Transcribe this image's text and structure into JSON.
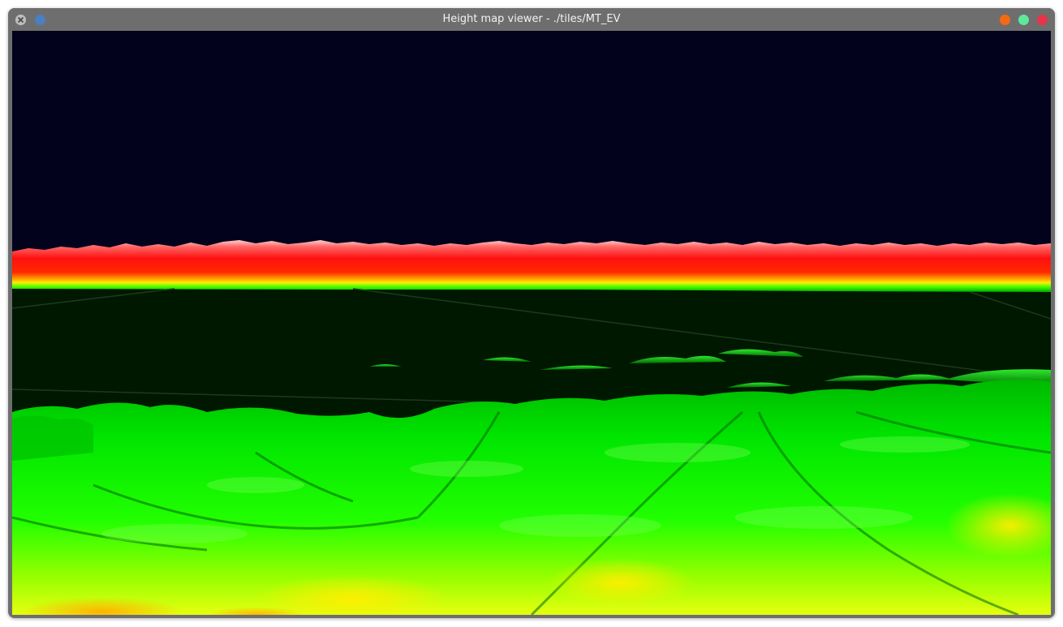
{
  "window": {
    "title": "Height map viewer - ./tiles/MT_EV",
    "controls": [
      {
        "name": "minimize-button",
        "color": "#f36a12"
      },
      {
        "name": "maximize-button",
        "color": "#5ee89a"
      },
      {
        "name": "close-button",
        "color": "#e8334a"
      }
    ],
    "app_icon": "app-icon",
    "pin_button_color": "#4a7fc1"
  },
  "viewport": {
    "sky_color": "#03021c",
    "lowland_color": "#001800",
    "high_elevation_color": "#ff1a1a",
    "mid_elevation_color": "#00ff00",
    "low_elevation_color": "#ffff00"
  }
}
